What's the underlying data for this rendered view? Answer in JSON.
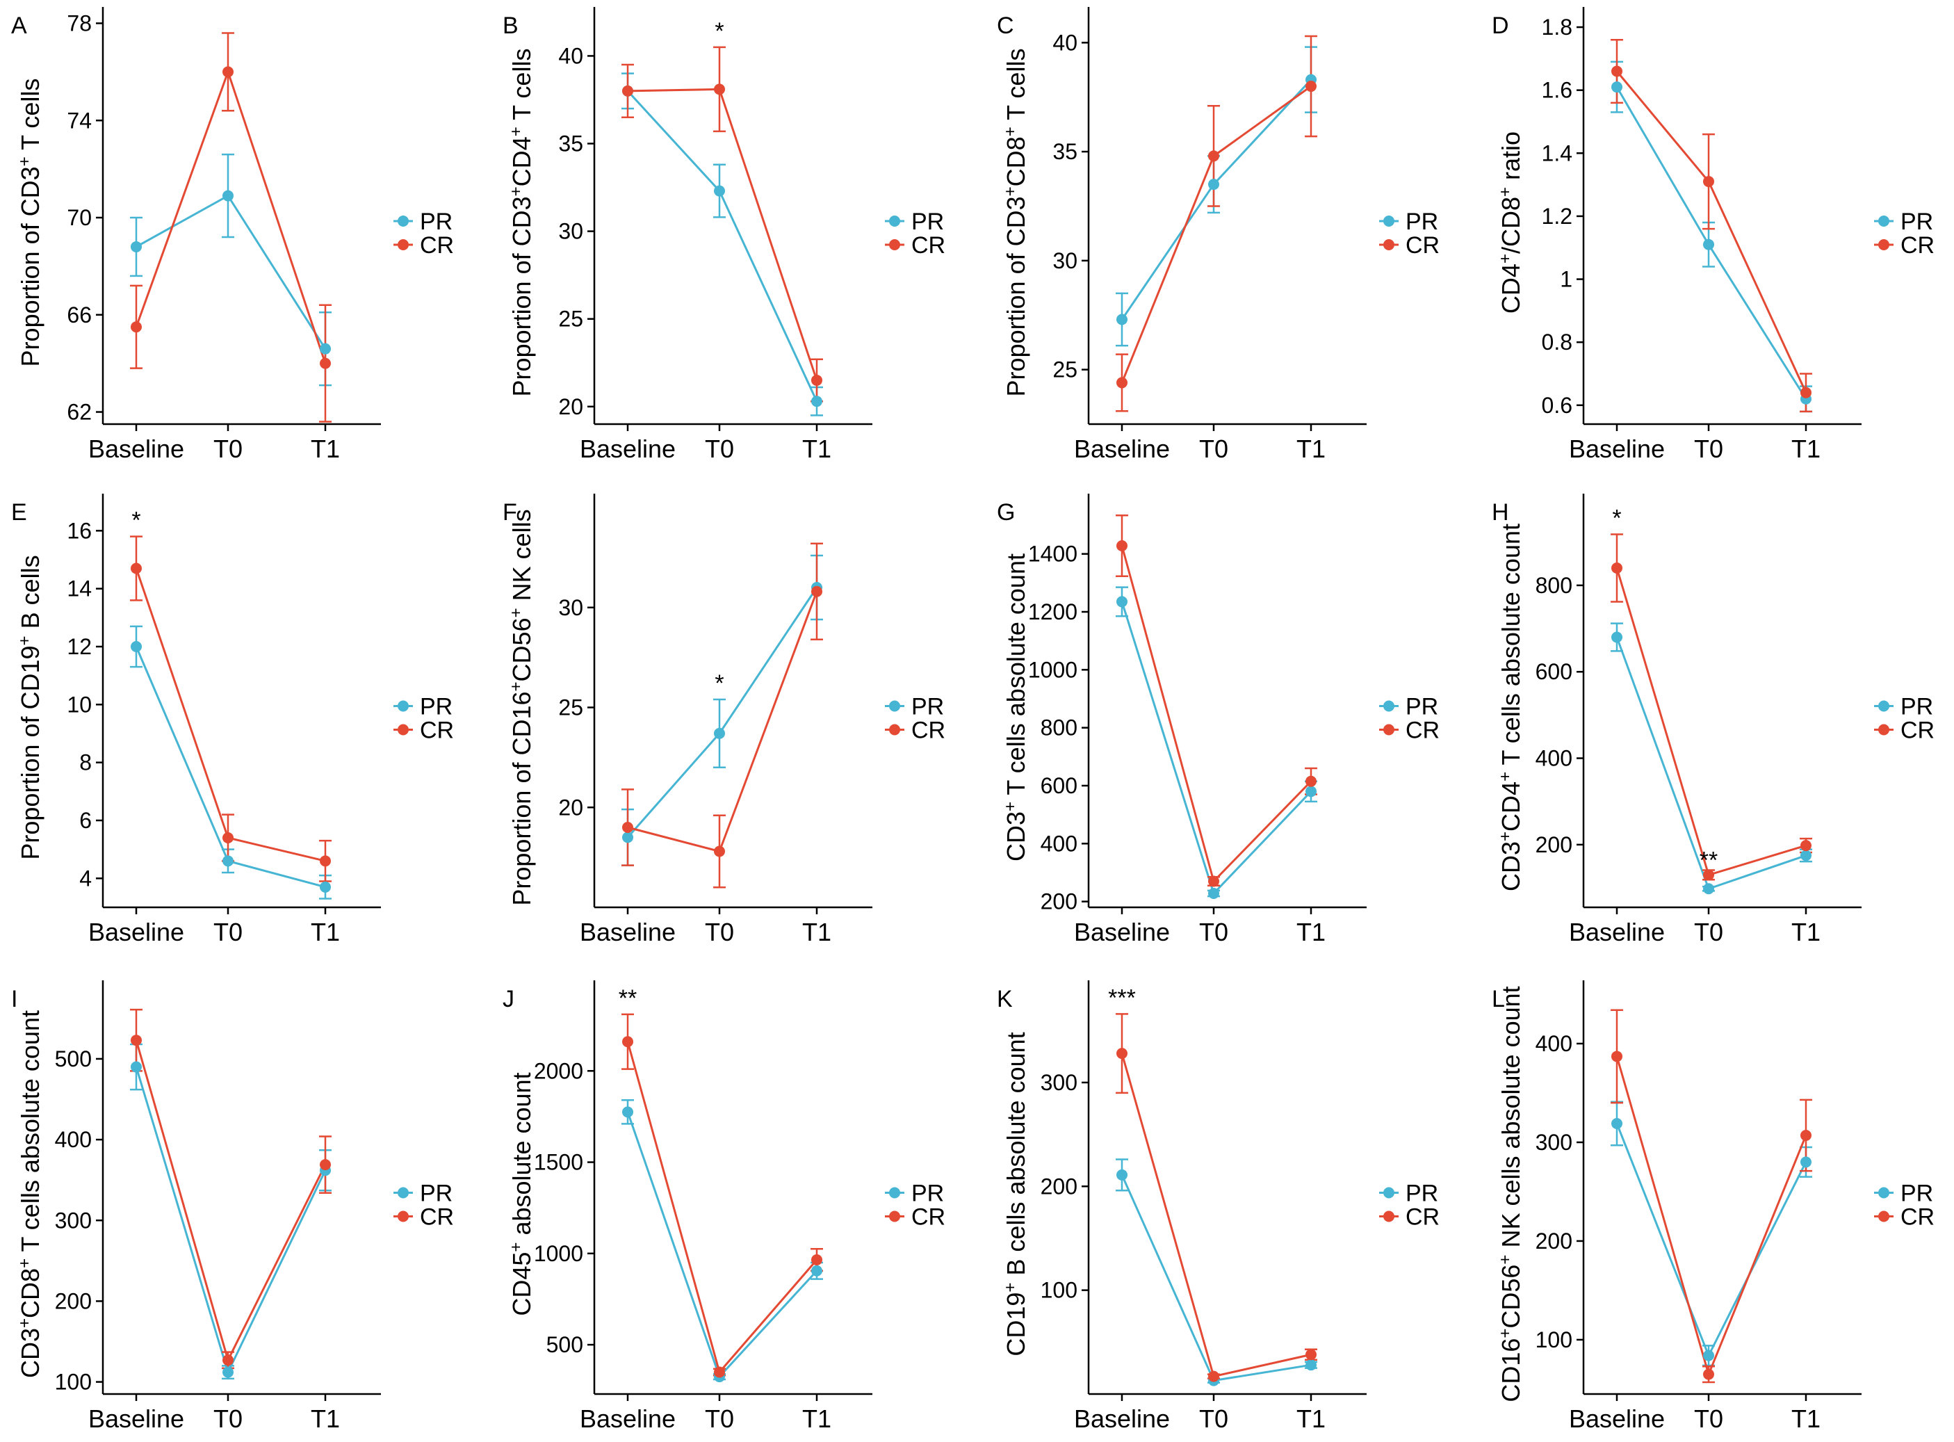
{
  "colors": {
    "PR": "#45B5D3",
    "CR": "#E44A33"
  },
  "chart_data": [
    {
      "type": "line",
      "panel": "A",
      "title": "",
      "ylabel_parts": [
        [
          "Proportion of CD3",
          ""
        ],
        [
          "+",
          "sup"
        ],
        [
          " T cells",
          ""
        ]
      ],
      "categories": [
        "Baseline",
        "T0",
        "T1"
      ],
      "ylim": [
        61.5,
        78.1
      ],
      "yticks": [
        62,
        66,
        70,
        74,
        78
      ],
      "series": [
        {
          "name": "PR",
          "values": [
            68.8,
            70.9,
            64.6
          ],
          "errors": [
            1.2,
            1.7,
            1.5
          ]
        },
        {
          "name": "CR",
          "values": [
            65.5,
            76.0,
            64.0
          ],
          "errors": [
            1.7,
            1.6,
            2.4
          ]
        }
      ],
      "annotations": []
    },
    {
      "type": "line",
      "panel": "B",
      "title": "",
      "ylabel_parts": [
        [
          "Proportion of CD3",
          ""
        ],
        [
          "+",
          "sup"
        ],
        [
          "CD4",
          ""
        ],
        [
          "+",
          "sup"
        ],
        [
          " T cells",
          ""
        ]
      ],
      "categories": [
        "Baseline",
        "T0",
        "T1"
      ],
      "ylim": [
        19.0,
        42.0
      ],
      "yticks": [
        20,
        25,
        30,
        35,
        40
      ],
      "series": [
        {
          "name": "PR",
          "values": [
            38.0,
            32.3,
            20.3
          ],
          "errors": [
            1.0,
            1.5,
            0.8
          ]
        },
        {
          "name": "CR",
          "values": [
            38.0,
            38.1,
            21.5
          ],
          "errors": [
            1.5,
            2.4,
            1.2
          ]
        }
      ],
      "annotations": [
        {
          "category": "T0",
          "text": "*"
        }
      ]
    },
    {
      "type": "line",
      "panel": "C",
      "title": "",
      "ylabel_parts": [
        [
          "Proportion of CD3",
          ""
        ],
        [
          "+",
          "sup"
        ],
        [
          "CD8",
          ""
        ],
        [
          "+",
          "sup"
        ],
        [
          " T cells",
          ""
        ]
      ],
      "categories": [
        "Baseline",
        "T0",
        "T1"
      ],
      "ylim": [
        22.5,
        41.0
      ],
      "yticks": [
        25,
        30,
        35,
        40
      ],
      "series": [
        {
          "name": "PR",
          "values": [
            27.3,
            33.5,
            38.3
          ],
          "errors": [
            1.2,
            1.3,
            1.5
          ]
        },
        {
          "name": "CR",
          "values": [
            24.4,
            34.8,
            38.0
          ],
          "errors": [
            1.3,
            2.3,
            2.3
          ]
        }
      ],
      "annotations": []
    },
    {
      "type": "line",
      "panel": "D",
      "title": "",
      "ylabel_parts": [
        [
          "CD4",
          ""
        ],
        [
          "+",
          "sup"
        ],
        [
          "/CD8",
          ""
        ],
        [
          "+",
          "sup"
        ],
        [
          " ratio",
          ""
        ]
      ],
      "categories": [
        "Baseline",
        "T0",
        "T1"
      ],
      "ylim": [
        0.54,
        1.82
      ],
      "yticks": [
        0.6,
        0.8,
        1.0,
        1.2,
        1.4,
        1.6,
        1.8
      ],
      "series": [
        {
          "name": "PR",
          "values": [
            1.61,
            1.11,
            0.62
          ],
          "errors": [
            0.08,
            0.07,
            0.04
          ]
        },
        {
          "name": "CR",
          "values": [
            1.66,
            1.31,
            0.64
          ],
          "errors": [
            0.1,
            0.15,
            0.06
          ]
        }
      ],
      "annotations": []
    },
    {
      "type": "line",
      "panel": "E",
      "title": "",
      "ylabel_parts": [
        [
          "Proportion of CD19",
          ""
        ],
        [
          "+",
          "sup"
        ],
        [
          " B cells",
          ""
        ]
      ],
      "categories": [
        "Baseline",
        "T0",
        "T1"
      ],
      "ylim": [
        3.0,
        16.8
      ],
      "yticks": [
        4,
        6,
        8,
        10,
        12,
        14,
        16
      ],
      "series": [
        {
          "name": "PR",
          "values": [
            12.0,
            4.6,
            3.7
          ],
          "errors": [
            0.7,
            0.4,
            0.4
          ]
        },
        {
          "name": "CR",
          "values": [
            14.7,
            5.4,
            4.6
          ],
          "errors": [
            1.1,
            0.8,
            0.7
          ]
        }
      ],
      "annotations": [
        {
          "category": "Baseline",
          "text": "*"
        }
      ]
    },
    {
      "type": "line",
      "panel": "F",
      "title": "",
      "ylabel_parts": [
        [
          "Proportion of CD16",
          ""
        ],
        [
          "+",
          "sup"
        ],
        [
          "CD56",
          ""
        ],
        [
          "+",
          "sup"
        ],
        [
          " NK cells",
          ""
        ]
      ],
      "categories": [
        "Baseline",
        "T0",
        "T1"
      ],
      "ylim": [
        15.0,
        35.0
      ],
      "yticks": [
        20,
        25,
        30
      ],
      "series": [
        {
          "name": "PR",
          "values": [
            18.5,
            23.7,
            31.0
          ],
          "errors": [
            1.4,
            1.7,
            1.6
          ]
        },
        {
          "name": "CR",
          "values": [
            19.0,
            17.8,
            30.8
          ],
          "errors": [
            1.9,
            1.8,
            2.4
          ]
        }
      ],
      "annotations": [
        {
          "category": "T0",
          "text": "*"
        }
      ]
    },
    {
      "type": "line",
      "panel": "G",
      "title": "",
      "ylabel_parts": [
        [
          "CD3",
          ""
        ],
        [
          "+",
          "sup"
        ],
        [
          " T cells absolute count",
          ""
        ]
      ],
      "categories": [
        "Baseline",
        "T0",
        "T1"
      ],
      "ylim": [
        180,
        1560
      ],
      "yticks": [
        200,
        400,
        600,
        800,
        1000,
        1200,
        1400
      ],
      "series": [
        {
          "name": "PR",
          "values": [
            1235,
            228,
            580
          ],
          "errors": [
            50,
            10,
            35
          ]
        },
        {
          "name": "CR",
          "values": [
            1428,
            270,
            615
          ],
          "errors": [
            105,
            15,
            45
          ]
        }
      ],
      "annotations": []
    },
    {
      "type": "line",
      "panel": "H",
      "title": "",
      "ylabel_parts": [
        [
          "CD3",
          ""
        ],
        [
          "+",
          "sup"
        ],
        [
          "CD4",
          ""
        ],
        [
          "+",
          "sup"
        ],
        [
          " T cells absolute count",
          ""
        ]
      ],
      "categories": [
        "Baseline",
        "T0",
        "T1"
      ],
      "ylim": [
        55,
        980
      ],
      "yticks": [
        200,
        400,
        600,
        800
      ],
      "series": [
        {
          "name": "PR",
          "values": [
            680,
            98,
            175
          ],
          "errors": [
            32,
            5,
            14
          ]
        },
        {
          "name": "CR",
          "values": [
            840,
            130,
            198
          ],
          "errors": [
            78,
            11,
            16
          ]
        }
      ],
      "annotations": [
        {
          "category": "Baseline",
          "text": "*"
        },
        {
          "category": "T0",
          "text": "**"
        }
      ]
    },
    {
      "type": "line",
      "panel": "I",
      "title": "",
      "ylabel_parts": [
        [
          "CD3",
          ""
        ],
        [
          "+",
          "sup"
        ],
        [
          "CD8",
          ""
        ],
        [
          "+",
          "sup"
        ],
        [
          " T cells absolute count",
          ""
        ]
      ],
      "categories": [
        "Baseline",
        "T0",
        "T1"
      ],
      "ylim": [
        85,
        580
      ],
      "yticks": [
        100,
        200,
        300,
        400,
        500
      ],
      "series": [
        {
          "name": "PR",
          "values": [
            490,
            112,
            362
          ],
          "errors": [
            28,
            8,
            25
          ]
        },
        {
          "name": "CR",
          "values": [
            523,
            127,
            369
          ],
          "errors": [
            38,
            10,
            35
          ]
        }
      ],
      "annotations": []
    },
    {
      "type": "line",
      "panel": "J",
      "title": "",
      "ylabel_parts": [
        [
          "CD45",
          ""
        ],
        [
          "+",
          "sup"
        ],
        [
          " absolute count",
          ""
        ]
      ],
      "categories": [
        "Baseline",
        "T0",
        "T1"
      ],
      "ylim": [
        230,
        2420
      ],
      "yticks": [
        500,
        1000,
        1500,
        2000
      ],
      "series": [
        {
          "name": "PR",
          "values": [
            1775,
            325,
            905
          ],
          "errors": [
            65,
            15,
            45
          ]
        },
        {
          "name": "CR",
          "values": [
            2160,
            350,
            965
          ],
          "errors": [
            150,
            18,
            60
          ]
        }
      ],
      "annotations": [
        {
          "category": "Baseline",
          "text": "**"
        }
      ]
    },
    {
      "type": "line",
      "panel": "K",
      "title": "",
      "ylabel_parts": [
        [
          "CD19",
          ""
        ],
        [
          "+",
          "sup"
        ],
        [
          " B cells absolute count",
          ""
        ]
      ],
      "categories": [
        "Baseline",
        "T0",
        "T1"
      ],
      "ylim": [
        0,
        385
      ],
      "yticks": [
        100,
        200,
        300
      ],
      "series": [
        {
          "name": "PR",
          "values": [
            211,
            13,
            28
          ],
          "errors": [
            15,
            2,
            3
          ]
        },
        {
          "name": "CR",
          "values": [
            328,
            17,
            38
          ],
          "errors": [
            38,
            2,
            5
          ]
        }
      ],
      "annotations": [
        {
          "category": "Baseline",
          "text": "***"
        }
      ]
    },
    {
      "type": "line",
      "panel": "L",
      "title": "",
      "ylabel_parts": [
        [
          "CD16",
          ""
        ],
        [
          "+",
          "sup"
        ],
        [
          "CD56",
          ""
        ],
        [
          "+",
          "sup"
        ],
        [
          " NK cells absolute count",
          ""
        ]
      ],
      "categories": [
        "Baseline",
        "T0",
        "T1"
      ],
      "ylim": [
        45,
        450
      ],
      "yticks": [
        100,
        200,
        300,
        400
      ],
      "series": [
        {
          "name": "PR",
          "values": [
            319,
            84,
            280
          ],
          "errors": [
            22,
            10,
            15
          ]
        },
        {
          "name": "CR",
          "values": [
            387,
            65,
            307
          ],
          "errors": [
            47,
            8,
            36
          ]
        }
      ],
      "annotations": []
    }
  ]
}
